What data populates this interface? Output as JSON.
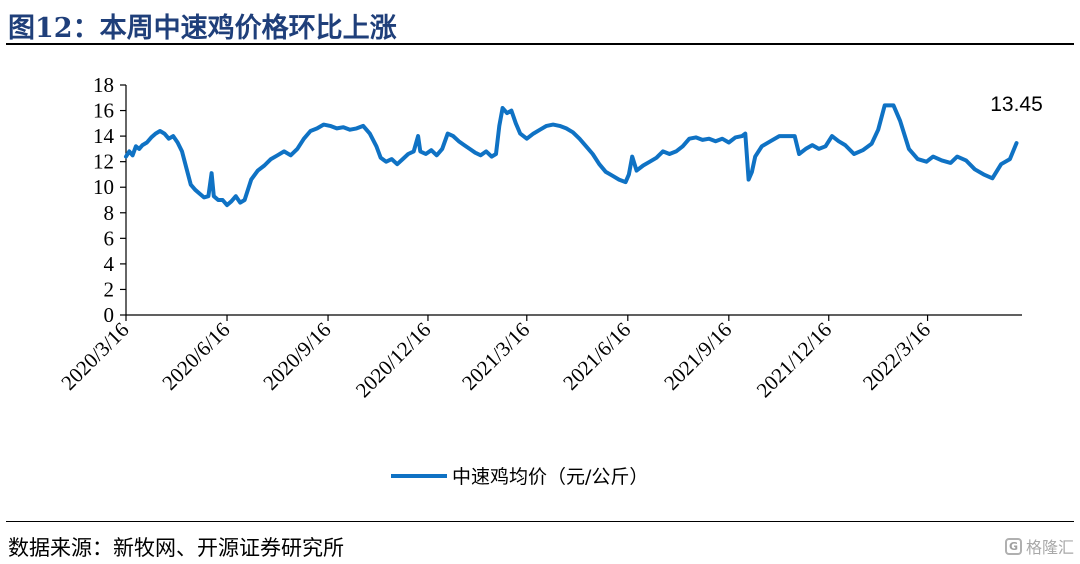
{
  "figure": {
    "title": "图12：本周中速鸡价格环比上涨",
    "source": "数据来源：新牧网、开源证券研究所",
    "watermark": "格隆汇"
  },
  "colors": {
    "series": "#0f72c4",
    "title": "#1f3f7a",
    "axis": "#000000"
  },
  "chart_data": {
    "type": "line",
    "title": "",
    "xlabel": "",
    "ylabel": "",
    "ylim": [
      0,
      18
    ],
    "yticks": [
      "0",
      "2",
      "4",
      "6",
      "8",
      "10",
      "12",
      "14",
      "16",
      "18"
    ],
    "xlim": [
      "2020-03-16",
      "2022-06-10"
    ],
    "xticks": [
      "2020/3/16",
      "2020/6/16",
      "2020/9/16",
      "2020/12/16",
      "2021/3/16",
      "2021/6/16",
      "2021/9/16",
      "2021/12/16",
      "2022/3/16"
    ],
    "grid": false,
    "legend": "bottom-center",
    "annotation": "13.45",
    "series": [
      {
        "name": "中速鸡均价（元/公斤）",
        "points": [
          [
            "2020-03-16",
            12.4
          ],
          [
            "2020-03-19",
            12.8
          ],
          [
            "2020-03-22",
            12.5
          ],
          [
            "2020-03-25",
            13.2
          ],
          [
            "2020-03-28",
            13.0
          ],
          [
            "2020-03-31",
            13.3
          ],
          [
            "2020-04-04",
            13.5
          ],
          [
            "2020-04-08",
            13.9
          ],
          [
            "2020-04-12",
            14.2
          ],
          [
            "2020-04-16",
            14.4
          ],
          [
            "2020-04-20",
            14.2
          ],
          [
            "2020-04-24",
            13.8
          ],
          [
            "2020-04-28",
            14.0
          ],
          [
            "2020-05-02",
            13.5
          ],
          [
            "2020-05-06",
            12.8
          ],
          [
            "2020-05-10",
            11.5
          ],
          [
            "2020-05-14",
            10.2
          ],
          [
            "2020-05-18",
            9.8
          ],
          [
            "2020-05-22",
            9.5
          ],
          [
            "2020-05-26",
            9.2
          ],
          [
            "2020-05-30",
            9.3
          ],
          [
            "2020-06-02",
            11.1
          ],
          [
            "2020-06-04",
            9.3
          ],
          [
            "2020-06-08",
            9.0
          ],
          [
            "2020-06-12",
            9.0
          ],
          [
            "2020-06-16",
            8.6
          ],
          [
            "2020-06-20",
            8.9
          ],
          [
            "2020-06-24",
            9.3
          ],
          [
            "2020-06-28",
            8.8
          ],
          [
            "2020-07-02",
            9.0
          ],
          [
            "2020-07-08",
            10.6
          ],
          [
            "2020-07-14",
            11.3
          ],
          [
            "2020-07-20",
            11.7
          ],
          [
            "2020-07-26",
            12.2
          ],
          [
            "2020-08-01",
            12.5
          ],
          [
            "2020-08-07",
            12.8
          ],
          [
            "2020-08-13",
            12.5
          ],
          [
            "2020-08-19",
            13.0
          ],
          [
            "2020-08-25",
            13.8
          ],
          [
            "2020-08-31",
            14.4
          ],
          [
            "2020-09-06",
            14.6
          ],
          [
            "2020-09-12",
            14.9
          ],
          [
            "2020-09-18",
            14.8
          ],
          [
            "2020-09-24",
            14.6
          ],
          [
            "2020-09-30",
            14.7
          ],
          [
            "2020-10-06",
            14.5
          ],
          [
            "2020-10-12",
            14.6
          ],
          [
            "2020-10-18",
            14.8
          ],
          [
            "2020-10-24",
            14.2
          ],
          [
            "2020-10-30",
            13.2
          ],
          [
            "2020-11-03",
            12.3
          ],
          [
            "2020-11-08",
            12.0
          ],
          [
            "2020-11-13",
            12.2
          ],
          [
            "2020-11-18",
            11.8
          ],
          [
            "2020-11-23",
            12.2
          ],
          [
            "2020-11-28",
            12.6
          ],
          [
            "2020-12-03",
            12.8
          ],
          [
            "2020-12-07",
            14.0
          ],
          [
            "2020-12-09",
            12.8
          ],
          [
            "2020-12-14",
            12.6
          ],
          [
            "2020-12-19",
            12.9
          ],
          [
            "2020-12-24",
            12.5
          ],
          [
            "2020-12-29",
            13.0
          ],
          [
            "2021-01-03",
            14.2
          ],
          [
            "2021-01-08",
            14.0
          ],
          [
            "2021-01-13",
            13.6
          ],
          [
            "2021-01-18",
            13.3
          ],
          [
            "2021-01-23",
            13.0
          ],
          [
            "2021-01-28",
            12.7
          ],
          [
            "2021-02-02",
            12.5
          ],
          [
            "2021-02-07",
            12.8
          ],
          [
            "2021-02-12",
            12.4
          ],
          [
            "2021-02-16",
            12.6
          ],
          [
            "2021-02-19",
            14.8
          ],
          [
            "2021-02-22",
            16.2
          ],
          [
            "2021-02-26",
            15.8
          ],
          [
            "2021-03-02",
            16.0
          ],
          [
            "2021-03-06",
            15.0
          ],
          [
            "2021-03-10",
            14.2
          ],
          [
            "2021-03-16",
            13.8
          ],
          [
            "2021-03-22",
            14.2
          ],
          [
            "2021-03-28",
            14.5
          ],
          [
            "2021-04-03",
            14.8
          ],
          [
            "2021-04-09",
            14.9
          ],
          [
            "2021-04-15",
            14.8
          ],
          [
            "2021-04-21",
            14.6
          ],
          [
            "2021-04-27",
            14.3
          ],
          [
            "2021-05-03",
            13.8
          ],
          [
            "2021-05-09",
            13.2
          ],
          [
            "2021-05-15",
            12.6
          ],
          [
            "2021-05-21",
            11.8
          ],
          [
            "2021-05-27",
            11.2
          ],
          [
            "2021-06-02",
            10.9
          ],
          [
            "2021-06-08",
            10.6
          ],
          [
            "2021-06-14",
            10.4
          ],
          [
            "2021-06-17",
            11.0
          ],
          [
            "2021-06-20",
            12.4
          ],
          [
            "2021-06-24",
            11.3
          ],
          [
            "2021-06-30",
            11.7
          ],
          [
            "2021-07-06",
            12.0
          ],
          [
            "2021-07-12",
            12.3
          ],
          [
            "2021-07-18",
            12.8
          ],
          [
            "2021-07-24",
            12.6
          ],
          [
            "2021-07-30",
            12.8
          ],
          [
            "2021-08-05",
            13.2
          ],
          [
            "2021-08-11",
            13.8
          ],
          [
            "2021-08-17",
            13.9
          ],
          [
            "2021-08-23",
            13.7
          ],
          [
            "2021-08-29",
            13.8
          ],
          [
            "2021-09-04",
            13.6
          ],
          [
            "2021-09-10",
            13.8
          ],
          [
            "2021-09-16",
            13.5
          ],
          [
            "2021-09-22",
            13.9
          ],
          [
            "2021-09-28",
            14.0
          ],
          [
            "2021-10-01",
            14.2
          ],
          [
            "2021-10-04",
            10.6
          ],
          [
            "2021-10-07",
            11.2
          ],
          [
            "2021-10-10",
            12.4
          ],
          [
            "2021-10-16",
            13.2
          ],
          [
            "2021-10-24",
            13.6
          ],
          [
            "2021-11-01",
            14.0
          ],
          [
            "2021-11-09",
            14.0
          ],
          [
            "2021-11-15",
            14.0
          ],
          [
            "2021-11-19",
            12.6
          ],
          [
            "2021-11-25",
            13.0
          ],
          [
            "2021-12-01",
            13.3
          ],
          [
            "2021-12-07",
            13.0
          ],
          [
            "2021-12-13",
            13.2
          ],
          [
            "2021-12-19",
            14.0
          ],
          [
            "2021-12-25",
            13.6
          ],
          [
            "2021-12-31",
            13.3
          ],
          [
            "2022-01-08",
            12.6
          ],
          [
            "2022-01-16",
            12.9
          ],
          [
            "2022-01-24",
            13.4
          ],
          [
            "2022-01-30",
            14.5
          ],
          [
            "2022-02-05",
            16.4
          ],
          [
            "2022-02-13",
            16.4
          ],
          [
            "2022-02-19",
            15.2
          ],
          [
            "2022-02-27",
            13.0
          ],
          [
            "2022-03-07",
            12.2
          ],
          [
            "2022-03-15",
            12.0
          ],
          [
            "2022-03-21",
            12.4
          ],
          [
            "2022-03-29",
            12.1
          ],
          [
            "2022-04-06",
            11.9
          ],
          [
            "2022-04-12",
            12.4
          ],
          [
            "2022-04-20",
            12.1
          ],
          [
            "2022-04-28",
            11.4
          ],
          [
            "2022-05-06",
            11.0
          ],
          [
            "2022-05-14",
            10.7
          ],
          [
            "2022-05-22",
            11.8
          ],
          [
            "2022-05-30",
            12.2
          ],
          [
            "2022-06-05",
            13.45
          ]
        ]
      }
    ]
  }
}
